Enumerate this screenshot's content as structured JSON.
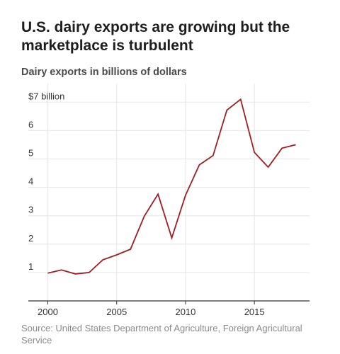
{
  "title": "U.S. dairy exports are growing but the marketplace is turbulent",
  "subtitle": "Dairy exports in billions of dollars",
  "source": "Source: United States Department of Agriculture, Foreign Agricultural Service",
  "colors": {
    "line": "#a01e23",
    "grid": "#e6e6e6",
    "axis": "#333333"
  },
  "chart_data": {
    "type": "line",
    "title": "U.S. dairy exports are growing but the marketplace is turbulent",
    "subtitle": "Dairy exports in billions of dollars",
    "xlabel": "",
    "ylabel": "",
    "xlim": [
      2000,
      2018
    ],
    "ylim": [
      0,
      7
    ],
    "grid": true,
    "legend": "none",
    "x_ticks": [
      {
        "value": 2000,
        "label": "2000"
      },
      {
        "value": 2005,
        "label": "2005"
      },
      {
        "value": 2010,
        "label": "2010"
      },
      {
        "value": 2015,
        "label": "2015"
      }
    ],
    "y_ticks": [
      {
        "value": 1,
        "label": "1"
      },
      {
        "value": 2,
        "label": "2"
      },
      {
        "value": 3,
        "label": "3"
      },
      {
        "value": 4,
        "label": "4"
      },
      {
        "value": 5,
        "label": "5"
      },
      {
        "value": 6,
        "label": "6"
      },
      {
        "value": 7,
        "label": "$7 billion"
      }
    ],
    "series": [
      {
        "x": [
          2000,
          2001,
          2002,
          2003,
          2004,
          2005,
          2006,
          2007,
          2008,
          2009,
          2010,
          2011,
          2012,
          2013,
          2014,
          2015,
          2016,
          2017,
          2018
        ],
        "values": [
          0.98,
          1.09,
          0.95,
          1.0,
          1.45,
          1.62,
          1.82,
          2.98,
          3.76,
          2.22,
          3.72,
          4.79,
          5.12,
          6.72,
          7.1,
          5.23,
          4.71,
          5.38,
          5.5
        ]
      }
    ]
  }
}
